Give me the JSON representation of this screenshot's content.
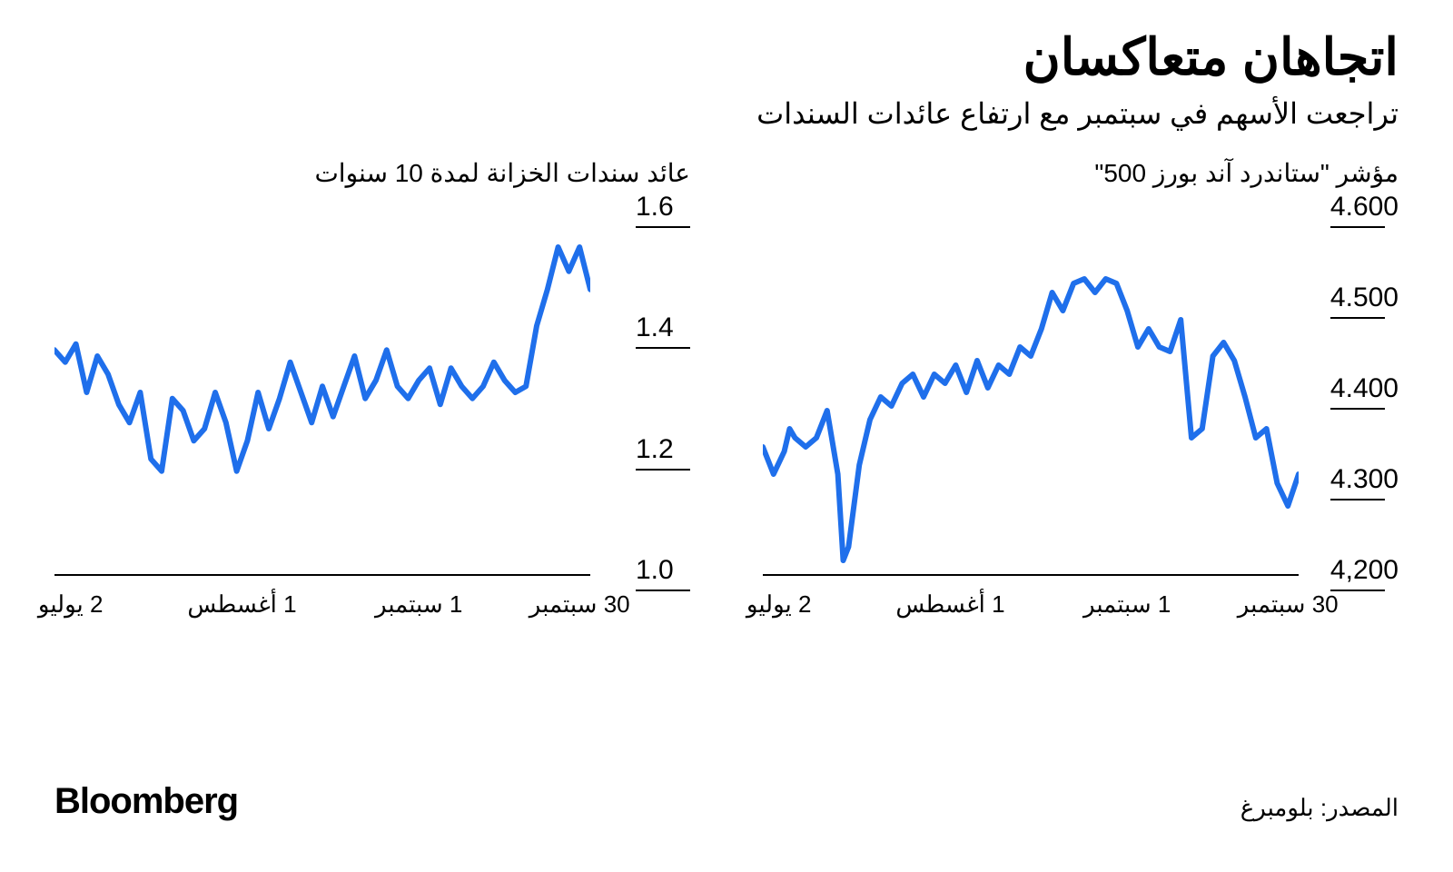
{
  "header": {
    "title": "اتجاهان متعاكسان",
    "subtitle": "تراجعت الأسهم في سبتمبر مع ارتفاع عائدات السندات"
  },
  "panels": {
    "left": {
      "title": "مؤشر \"ستاندرد آند بورز 500\"",
      "type": "line",
      "line_color": "#1f6feb",
      "line_width": 6,
      "background_color": "#ffffff",
      "axis_color": "#000000",
      "y": {
        "min": 4200,
        "max": 4600,
        "ticks": [
          4200,
          4300,
          4400,
          4500,
          4600
        ],
        "labels": [
          "4,200",
          "4.300",
          "4.400",
          "4.500",
          "4.600"
        ],
        "label_fontsize": 30
      },
      "x": {
        "min": 0,
        "max": 100,
        "ticks": [
          3,
          35,
          68,
          98
        ],
        "labels": [
          "2 يوليو",
          "1 أغسطس",
          "1 سبتمبر",
          "30 سبتمبر"
        ],
        "label_fontsize": 26
      },
      "series": [
        [
          0,
          4340
        ],
        [
          2,
          4310
        ],
        [
          4,
          4335
        ],
        [
          5,
          4360
        ],
        [
          6,
          4350
        ],
        [
          8,
          4340
        ],
        [
          10,
          4350
        ],
        [
          12,
          4380
        ],
        [
          14,
          4310
        ],
        [
          15,
          4215
        ],
        [
          16,
          4230
        ],
        [
          18,
          4320
        ],
        [
          20,
          4370
        ],
        [
          22,
          4395
        ],
        [
          24,
          4385
        ],
        [
          26,
          4410
        ],
        [
          28,
          4420
        ],
        [
          30,
          4395
        ],
        [
          32,
          4420
        ],
        [
          34,
          4410
        ],
        [
          36,
          4430
        ],
        [
          38,
          4400
        ],
        [
          40,
          4435
        ],
        [
          42,
          4405
        ],
        [
          44,
          4430
        ],
        [
          46,
          4420
        ],
        [
          48,
          4450
        ],
        [
          50,
          4440
        ],
        [
          52,
          4470
        ],
        [
          54,
          4510
        ],
        [
          56,
          4490
        ],
        [
          58,
          4520
        ],
        [
          60,
          4525
        ],
        [
          62,
          4510
        ],
        [
          64,
          4525
        ],
        [
          66,
          4520
        ],
        [
          68,
          4490
        ],
        [
          70,
          4450
        ],
        [
          72,
          4470
        ],
        [
          74,
          4450
        ],
        [
          76,
          4445
        ],
        [
          78,
          4480
        ],
        [
          80,
          4350
        ],
        [
          82,
          4360
        ],
        [
          84,
          4440
        ],
        [
          86,
          4455
        ],
        [
          88,
          4435
        ],
        [
          90,
          4395
        ],
        [
          92,
          4350
        ],
        [
          94,
          4360
        ],
        [
          96,
          4300
        ],
        [
          98,
          4275
        ],
        [
          100,
          4310
        ]
      ]
    },
    "right": {
      "title": "عائد سندات الخزانة لمدة 10 سنوات",
      "type": "line",
      "line_color": "#1f6feb",
      "line_width": 6,
      "background_color": "#ffffff",
      "axis_color": "#000000",
      "y": {
        "min": 1.0,
        "max": 1.6,
        "ticks": [
          1.0,
          1.2,
          1.4,
          1.6
        ],
        "labels": [
          "1.0",
          "1.2",
          "1.4",
          "1.6"
        ],
        "label_fontsize": 30
      },
      "x": {
        "min": 0,
        "max": 100,
        "ticks": [
          3,
          35,
          68,
          98
        ],
        "labels": [
          "2 يوليو",
          "1 أغسطس",
          "1 سبتمبر",
          "30 سبتمبر"
        ],
        "label_fontsize": 26
      },
      "series": [
        [
          0,
          1.37
        ],
        [
          2,
          1.35
        ],
        [
          4,
          1.38
        ],
        [
          6,
          1.3
        ],
        [
          8,
          1.36
        ],
        [
          10,
          1.33
        ],
        [
          12,
          1.28
        ],
        [
          14,
          1.25
        ],
        [
          16,
          1.3
        ],
        [
          18,
          1.19
        ],
        [
          20,
          1.17
        ],
        [
          22,
          1.29
        ],
        [
          24,
          1.27
        ],
        [
          26,
          1.22
        ],
        [
          28,
          1.24
        ],
        [
          30,
          1.3
        ],
        [
          32,
          1.25
        ],
        [
          34,
          1.17
        ],
        [
          36,
          1.22
        ],
        [
          38,
          1.3
        ],
        [
          40,
          1.24
        ],
        [
          42,
          1.29
        ],
        [
          44,
          1.35
        ],
        [
          46,
          1.3
        ],
        [
          48,
          1.25
        ],
        [
          50,
          1.31
        ],
        [
          52,
          1.26
        ],
        [
          54,
          1.31
        ],
        [
          56,
          1.36
        ],
        [
          58,
          1.29
        ],
        [
          60,
          1.32
        ],
        [
          62,
          1.37
        ],
        [
          64,
          1.31
        ],
        [
          66,
          1.29
        ],
        [
          68,
          1.32
        ],
        [
          70,
          1.34
        ],
        [
          72,
          1.28
        ],
        [
          74,
          1.34
        ],
        [
          76,
          1.31
        ],
        [
          78,
          1.29
        ],
        [
          80,
          1.31
        ],
        [
          82,
          1.35
        ],
        [
          84,
          1.32
        ],
        [
          86,
          1.3
        ],
        [
          88,
          1.31
        ],
        [
          90,
          1.41
        ],
        [
          92,
          1.47
        ],
        [
          94,
          1.54
        ],
        [
          96,
          1.5
        ],
        [
          98,
          1.54
        ],
        [
          100,
          1.47
        ]
      ]
    }
  },
  "footer": {
    "brand": "Bloomberg",
    "source": "المصدر: بلومبرغ"
  }
}
